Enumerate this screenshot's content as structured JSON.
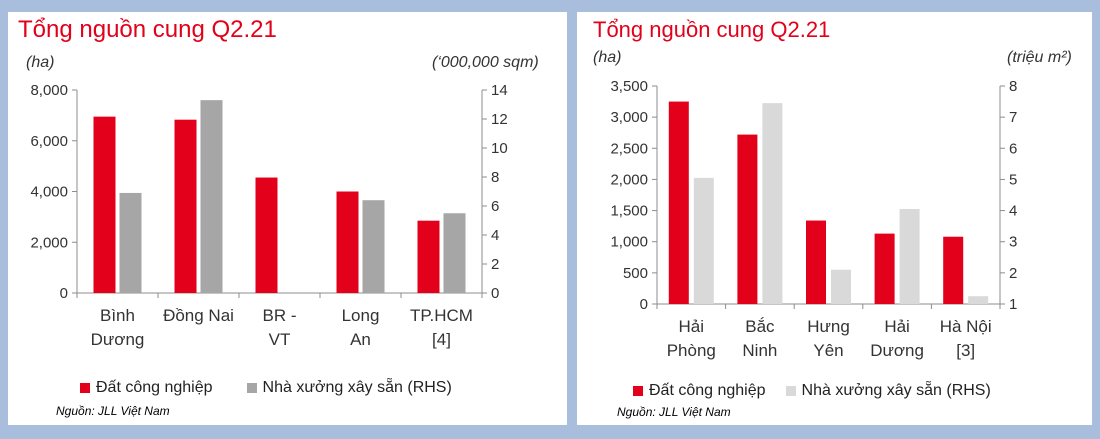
{
  "chart_data": [
    {
      "type": "bar",
      "title": "Tổng nguồn cung Q2.21",
      "ylabel": "(ha)",
      "y2label": "(‘000,000 sqm)",
      "categories": [
        [
          "Bình",
          "Dương"
        ],
        [
          "Đồng Nai"
        ],
        [
          "BR -",
          "VT"
        ],
        [
          "Long",
          "An"
        ],
        [
          "TP.HCM",
          "[4]"
        ]
      ],
      "ylim": [
        0,
        8000
      ],
      "yticks": [
        "0",
        "2,000",
        "4,000",
        "6,000",
        "8,000"
      ],
      "y2lim": [
        0,
        14
      ],
      "y2ticks": [
        "0",
        "2",
        "4",
        "6",
        "8",
        "10",
        "12",
        "14"
      ],
      "series": [
        {
          "name": "Đất công nghiệp",
          "axis": "left",
          "color": "#e3001b",
          "values": [
            6950,
            6830,
            4550,
            4000,
            2850
          ]
        },
        {
          "name": "Nhà xưởng xây sẵn (RHS)",
          "axis": "right",
          "color": "#a6a6a6",
          "values": [
            6.9,
            13.3,
            0,
            6.4,
            5.5
          ]
        }
      ],
      "source": "Nguồn: JLL Việt Nam"
    },
    {
      "type": "bar",
      "title": "Tổng nguồn cung Q2.21",
      "ylabel": "(ha)",
      "y2label": "(triệu m²)",
      "categories": [
        [
          "Hải",
          "Phòng"
        ],
        [
          "Bắc",
          "Ninh"
        ],
        [
          "Hưng",
          "Yên"
        ],
        [
          "Hải",
          "Dương"
        ],
        [
          "Hà Nội",
          "[3]"
        ]
      ],
      "ylim": [
        0,
        3500
      ],
      "yticks": [
        "0",
        "500",
        "1,000",
        "1,500",
        "2,000",
        "2,500",
        "3,000",
        "3,500"
      ],
      "y2lim": [
        1,
        8
      ],
      "y2ticks": [
        "1",
        "2",
        "3",
        "4",
        "5",
        "6",
        "7",
        "8"
      ],
      "series": [
        {
          "name": "Đất công nghiệp",
          "axis": "left",
          "color": "#e3001b",
          "values": [
            3250,
            2720,
            1340,
            1130,
            1080
          ]
        },
        {
          "name": "Nhà xưởng xây sẵn (RHS)",
          "axis": "right",
          "color": "#d9d9d9",
          "values": [
            5.05,
            7.45,
            2.1,
            4.05,
            1.25
          ]
        }
      ],
      "source": "Nguồn: JLL Việt Nam"
    }
  ]
}
